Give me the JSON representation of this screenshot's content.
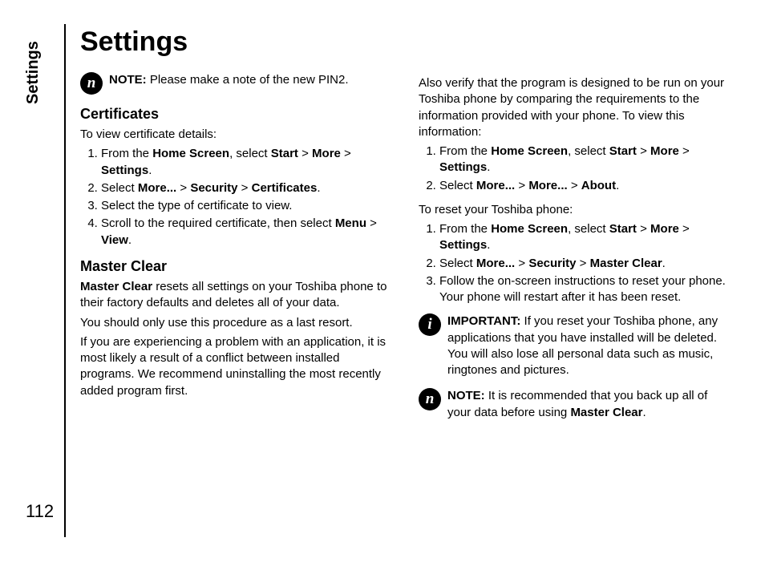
{
  "side_label": "Settings",
  "page_number": "112",
  "title": "Settings",
  "note_icon": "n",
  "info_icon": "i",
  "col1": {
    "note1_label": "NOTE:",
    "note1_text": " Please make a note of the new PIN2.",
    "sec1_title": "Certificates",
    "sec1_intro": "To view certificate details:",
    "sec1_step1_a": "From the ",
    "sec1_step1_b": "Home Screen",
    "sec1_step1_c": ", select ",
    "sec1_step1_d": "Start",
    "sec1_step1_e": " > ",
    "sec1_step1_f": "More",
    "sec1_step1_g": " > ",
    "sec1_step1_h": "Settings",
    "sec1_step1_i": ".",
    "sec1_step2_a": "Select ",
    "sec1_step2_b": "More...",
    "sec1_step2_c": " > ",
    "sec1_step2_d": "Security",
    "sec1_step2_e": " > ",
    "sec1_step2_f": "Certificates",
    "sec1_step2_g": ".",
    "sec1_step3": "Select the type of certificate to view.",
    "sec1_step4_a": "Scroll to the required certificate, then select ",
    "sec1_step4_b": "Menu",
    "sec1_step4_c": " > ",
    "sec1_step4_d": "View",
    "sec1_step4_e": ".",
    "sec2_title": "Master Clear",
    "sec2_p1_a": "Master Clear",
    "sec2_p1_b": " resets all settings on your Toshiba phone to their factory defaults and deletes all of your data.",
    "sec2_p2": "You should only use this procedure as a last resort.",
    "sec2_p3": "If you are experiencing a problem with an application, it is most likely a result of a conflict between installed programs. We recommend uninstalling the most recently added program first."
  },
  "col2": {
    "p1": "Also verify that the program is designed to be run on your Toshiba phone by comparing the requirements to the information provided with your phone. To view this information:",
    "s1_a": "From the ",
    "s1_b": "Home Screen",
    "s1_c": ", select ",
    "s1_d": "Start",
    "s1_e": " > ",
    "s1_f": "More",
    "s1_g": " > ",
    "s1_h": "Settings",
    "s1_i": ".",
    "s2_a": "Select ",
    "s2_b": "More...",
    "s2_c": " > ",
    "s2_d": "More...",
    "s2_e": " > ",
    "s2_f": "About",
    "s2_g": ".",
    "p2": "To reset your Toshiba phone:",
    "r1_a": "From the ",
    "r1_b": "Home Screen",
    "r1_c": ", select ",
    "r1_d": "Start",
    "r1_e": " > ",
    "r1_f": "More",
    "r1_g": " > ",
    "r1_h": "Settings",
    "r1_i": ".",
    "r2_a": "Select ",
    "r2_b": "More...",
    "r2_c": " > ",
    "r2_d": "Security",
    "r2_e": " > ",
    "r2_f": "Master Clear",
    "r2_g": ".",
    "r3": "Follow the on-screen instructions to reset your phone. Your phone will restart after it has been reset.",
    "important_label": "IMPORTANT:",
    "important_text": " If you reset your Toshiba phone, any applications that you have installed will be deleted. You will also lose all personal data such as music, ringtones and pictures.",
    "note2_label": "NOTE:",
    "note2_text_a": " It is recommended that you back up all of your data before using ",
    "note2_text_b": "Master Clear",
    "note2_text_c": "."
  }
}
